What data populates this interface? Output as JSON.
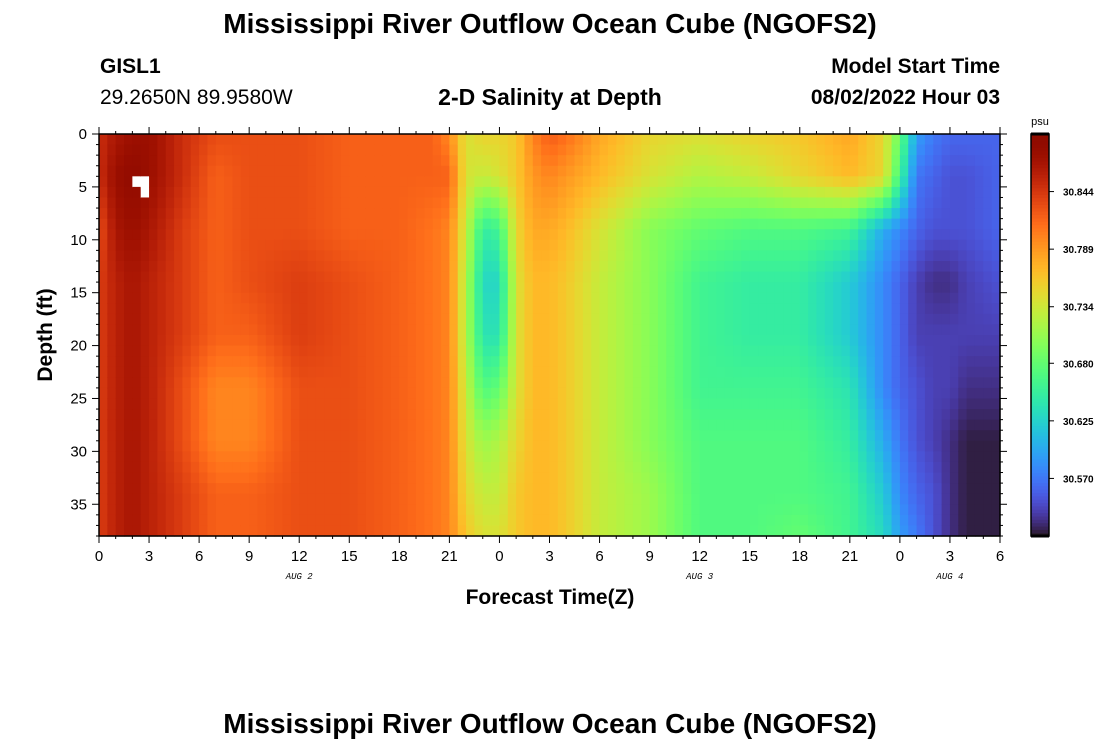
{
  "header": {
    "title": "Mississippi River Outflow Ocean Cube (NGOFS2)",
    "station_id": "GISL1",
    "station_coords": "29.2650N  89.9580W",
    "plot_title": "2-D Salinity at Depth",
    "model_start_label": "Model Start Time",
    "model_start_value": "08/02/2022 Hour 03"
  },
  "footer": {
    "title": "Mississippi River Outflow Ocean Cube (NGOFS2)"
  },
  "colors": {
    "high": "#7a0403",
    "low": "#30123b",
    "missing": "#ffffff"
  },
  "chart_data": {
    "type": "heatmap",
    "title": "2-D Salinity at Depth",
    "xlabel": "Forecast Time(Z)",
    "ylabel": "Depth (ft)",
    "x_tick_labels": [
      "0",
      "3",
      "6",
      "9",
      "12",
      "15",
      "18",
      "21",
      "0",
      "3",
      "6",
      "9",
      "12",
      "15",
      "18",
      "21",
      "0",
      "3",
      "6"
    ],
    "x_hours_range": [
      0,
      54
    ],
    "date_labels": [
      {
        "label": "AUG 2",
        "hour": 12
      },
      {
        "label": "AUG 3",
        "hour": 36
      },
      {
        "label": "AUG 4",
        "hour": 51
      }
    ],
    "y_tick_labels": [
      "0",
      "5",
      "10",
      "15",
      "20",
      "25",
      "30",
      "35"
    ],
    "y_ticks": [
      0,
      5,
      10,
      15,
      20,
      25,
      30,
      35
    ],
    "ylim": [
      0,
      38
    ],
    "y_inverted": true,
    "colorbar": {
      "unit": "psu",
      "colormap": "turbo",
      "tick_labels": [
        "30.844",
        "30.789",
        "30.734",
        "30.680",
        "30.625",
        "30.570"
      ],
      "ticks": [
        30.844,
        30.789,
        30.734,
        30.68,
        30.625,
        30.57
      ],
      "range": [
        30.515,
        30.899
      ]
    },
    "depths": [
      0.5,
      4,
      9,
      14,
      19,
      24,
      29,
      34,
      37.5
    ],
    "times": [
      0,
      1,
      2,
      3,
      5,
      7,
      9,
      12,
      15,
      18,
      20,
      21,
      22,
      23,
      24,
      25,
      26,
      27,
      28,
      30,
      33,
      36,
      39,
      42,
      45,
      47,
      48,
      49,
      50,
      51,
      52,
      54
    ],
    "values": [
      [
        30.85,
        30.87,
        30.88,
        30.88,
        30.85,
        30.83,
        30.83,
        30.83,
        30.82,
        30.82,
        30.82,
        30.8,
        30.74,
        30.75,
        30.75,
        30.76,
        30.8,
        30.82,
        30.81,
        30.78,
        30.75,
        30.74,
        30.75,
        30.76,
        30.78,
        30.75,
        30.68,
        30.59,
        30.57,
        30.56,
        30.56,
        30.56
      ],
      [
        30.85,
        30.88,
        30.89,
        30.88,
        30.85,
        30.82,
        30.83,
        30.83,
        30.82,
        30.82,
        30.82,
        30.82,
        30.74,
        30.73,
        30.74,
        30.76,
        30.79,
        30.8,
        30.79,
        30.77,
        30.74,
        30.72,
        30.73,
        30.75,
        30.77,
        30.75,
        30.66,
        30.57,
        30.56,
        30.55,
        30.55,
        30.56
      ],
      [
        30.83,
        30.87,
        30.88,
        30.87,
        30.84,
        30.82,
        30.83,
        30.83,
        30.82,
        30.82,
        30.81,
        30.8,
        30.73,
        30.65,
        30.66,
        30.75,
        30.78,
        30.78,
        30.77,
        30.74,
        30.7,
        30.68,
        30.67,
        30.67,
        30.66,
        30.6,
        30.58,
        30.56,
        30.55,
        30.55,
        30.55,
        30.56
      ],
      [
        30.84,
        30.86,
        30.87,
        30.86,
        30.84,
        30.82,
        30.83,
        30.84,
        30.83,
        30.82,
        30.81,
        30.8,
        30.72,
        30.63,
        30.63,
        30.74,
        30.77,
        30.77,
        30.76,
        30.73,
        30.7,
        30.66,
        30.65,
        30.65,
        30.62,
        30.58,
        30.56,
        30.54,
        30.53,
        30.53,
        30.54,
        30.55
      ],
      [
        30.84,
        30.86,
        30.87,
        30.86,
        30.84,
        30.82,
        30.82,
        30.84,
        30.83,
        30.82,
        30.81,
        30.8,
        30.72,
        30.64,
        30.64,
        30.74,
        30.77,
        30.77,
        30.76,
        30.73,
        30.7,
        30.66,
        30.65,
        30.65,
        30.62,
        30.58,
        30.56,
        30.54,
        30.54,
        30.54,
        30.54,
        30.54
      ],
      [
        30.84,
        30.86,
        30.87,
        30.86,
        30.83,
        30.8,
        30.8,
        30.83,
        30.83,
        30.82,
        30.81,
        30.8,
        30.73,
        30.67,
        30.68,
        30.74,
        30.77,
        30.77,
        30.76,
        30.73,
        30.7,
        30.66,
        30.66,
        30.66,
        30.64,
        30.58,
        30.56,
        30.55,
        30.54,
        30.54,
        30.53,
        30.53
      ],
      [
        30.84,
        30.86,
        30.87,
        30.86,
        30.83,
        30.8,
        30.8,
        30.83,
        30.83,
        30.82,
        30.81,
        30.8,
        30.74,
        30.71,
        30.72,
        30.75,
        30.77,
        30.77,
        30.76,
        30.73,
        30.7,
        30.67,
        30.67,
        30.67,
        30.65,
        30.6,
        30.57,
        30.55,
        30.54,
        30.53,
        30.52,
        30.52
      ],
      [
        30.84,
        30.86,
        30.87,
        30.86,
        30.84,
        30.82,
        30.82,
        30.83,
        30.83,
        30.82,
        30.81,
        30.8,
        30.75,
        30.73,
        30.73,
        30.76,
        30.77,
        30.77,
        30.76,
        30.73,
        30.71,
        30.67,
        30.67,
        30.67,
        30.66,
        30.62,
        30.58,
        30.56,
        30.55,
        30.53,
        30.52,
        30.52
      ],
      [
        30.84,
        30.86,
        30.87,
        30.86,
        30.84,
        30.82,
        30.82,
        30.83,
        30.83,
        30.82,
        30.81,
        30.8,
        30.76,
        30.74,
        30.74,
        30.76,
        30.77,
        30.77,
        30.76,
        30.73,
        30.71,
        30.67,
        30.67,
        30.68,
        30.66,
        30.63,
        30.59,
        30.57,
        30.55,
        30.53,
        30.52,
        30.52
      ]
    ],
    "missing_cells": [
      {
        "time": 2,
        "depth": 4.5
      },
      {
        "time": 2.5,
        "depth": 4.5
      },
      {
        "time": 2.5,
        "depth": 5.5
      }
    ]
  }
}
